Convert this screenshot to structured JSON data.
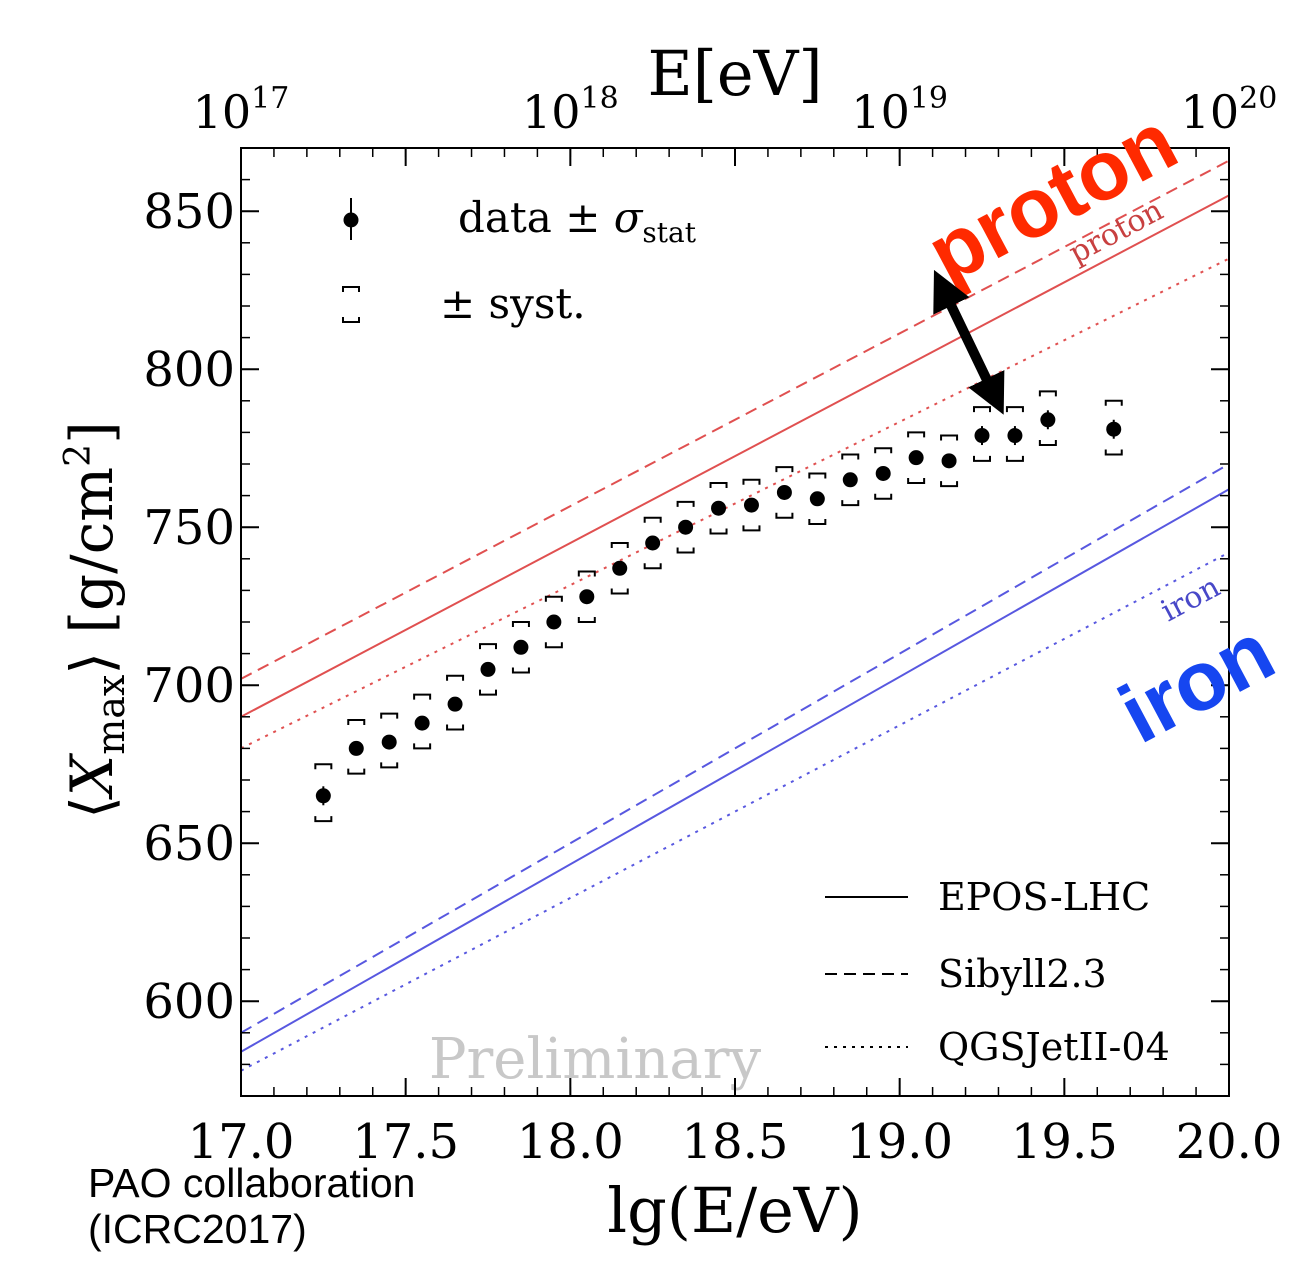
{
  "chart_data": {
    "type": "scatter",
    "xlabel": "lg(E/eV)",
    "ylabel_parts": {
      "open": "⟨",
      "var": "X",
      "sub": "max",
      "close": "⟩",
      "unit": " [g/cm",
      "sup": "2",
      "unit_end": "]"
    },
    "top_axis_title": "E[eV]",
    "top_ticks": [
      {
        "x": 17.0,
        "base": "10",
        "exp": "17"
      },
      {
        "x": 18.0,
        "base": "10",
        "exp": "18"
      },
      {
        "x": 19.0,
        "base": "10",
        "exp": "19"
      },
      {
        "x": 20.0,
        "base": "10",
        "exp": "20"
      }
    ],
    "xlim": [
      17.0,
      20.0
    ],
    "ylim": [
      570,
      870
    ],
    "x_ticks": [
      17.0,
      17.5,
      18.0,
      18.5,
      19.0,
      19.5,
      20.0
    ],
    "x_tick_labels": [
      "17.0",
      "17.5",
      "18.0",
      "18.5",
      "19.0",
      "19.5",
      "20.0"
    ],
    "y_ticks": [
      600,
      650,
      700,
      750,
      800,
      850
    ],
    "y_tick_labels": [
      "600",
      "650",
      "700",
      "750",
      "800",
      "850"
    ],
    "grid": false,
    "data": [
      {
        "x": 17.25,
        "y": 665,
        "stat": 3,
        "syst_lo": 657,
        "syst_hi": 675
      },
      {
        "x": 17.35,
        "y": 680,
        "stat": 2,
        "syst_lo": 672,
        "syst_hi": 689
      },
      {
        "x": 17.45,
        "y": 682,
        "stat": 2,
        "syst_lo": 674,
        "syst_hi": 691
      },
      {
        "x": 17.55,
        "y": 688,
        "stat": 2,
        "syst_lo": 680,
        "syst_hi": 697
      },
      {
        "x": 17.65,
        "y": 694,
        "stat": 2,
        "syst_lo": 686,
        "syst_hi": 703
      },
      {
        "x": 17.75,
        "y": 705,
        "stat": 2,
        "syst_lo": 697,
        "syst_hi": 713
      },
      {
        "x": 17.85,
        "y": 712,
        "stat": 2,
        "syst_lo": 704,
        "syst_hi": 720
      },
      {
        "x": 17.95,
        "y": 720,
        "stat": 2,
        "syst_lo": 712,
        "syst_hi": 728
      },
      {
        "x": 18.05,
        "y": 728,
        "stat": 2,
        "syst_lo": 720,
        "syst_hi": 736
      },
      {
        "x": 18.15,
        "y": 737,
        "stat": 2,
        "syst_lo": 729,
        "syst_hi": 745
      },
      {
        "x": 18.25,
        "y": 745,
        "stat": 2,
        "syst_lo": 737,
        "syst_hi": 753
      },
      {
        "x": 18.35,
        "y": 750,
        "stat": 2,
        "syst_lo": 742,
        "syst_hi": 758
      },
      {
        "x": 18.45,
        "y": 756,
        "stat": 2,
        "syst_lo": 748,
        "syst_hi": 764
      },
      {
        "x": 18.55,
        "y": 757,
        "stat": 2,
        "syst_lo": 749,
        "syst_hi": 765
      },
      {
        "x": 18.65,
        "y": 761,
        "stat": 2,
        "syst_lo": 753,
        "syst_hi": 769
      },
      {
        "x": 18.75,
        "y": 759,
        "stat": 2,
        "syst_lo": 751,
        "syst_hi": 767
      },
      {
        "x": 18.85,
        "y": 765,
        "stat": 2,
        "syst_lo": 757,
        "syst_hi": 773
      },
      {
        "x": 18.95,
        "y": 767,
        "stat": 2,
        "syst_lo": 759,
        "syst_hi": 775
      },
      {
        "x": 19.05,
        "y": 772,
        "stat": 2,
        "syst_lo": 764,
        "syst_hi": 780
      },
      {
        "x": 19.15,
        "y": 771,
        "stat": 2,
        "syst_lo": 763,
        "syst_hi": 779
      },
      {
        "x": 19.25,
        "y": 779,
        "stat": 3,
        "syst_lo": 771,
        "syst_hi": 788
      },
      {
        "x": 19.35,
        "y": 779,
        "stat": 3,
        "syst_lo": 771,
        "syst_hi": 788
      },
      {
        "x": 19.45,
        "y": 784,
        "stat": 3,
        "syst_lo": 776,
        "syst_hi": 793
      },
      {
        "x": 19.65,
        "y": 781,
        "stat": 3,
        "syst_lo": 773,
        "syst_hi": 790
      }
    ],
    "models": [
      {
        "name": "EPOS-LHC",
        "style": "solid",
        "proton": [
          [
            17.0,
            690
          ],
          [
            20.0,
            855
          ]
        ],
        "iron": [
          [
            17.0,
            584
          ],
          [
            20.0,
            762
          ]
        ]
      },
      {
        "name": "Sibyll2.3",
        "style": "dashed",
        "proton": [
          [
            17.0,
            702
          ],
          [
            20.0,
            866
          ]
        ],
        "iron": [
          [
            17.0,
            590
          ],
          [
            20.0,
            770
          ]
        ]
      },
      {
        "name": "QGSJetII-04",
        "style": "dotted",
        "proton": [
          [
            17.0,
            680
          ],
          [
            20.0,
            835
          ]
        ],
        "iron": [
          [
            17.0,
            578
          ],
          [
            20.0,
            742
          ]
        ]
      }
    ],
    "colors": {
      "proton": "#e05050",
      "iron": "#5858e0",
      "data": "#000000",
      "proton_big": "#ff2a00",
      "iron_big": "#1646f0"
    },
    "legend_data": {
      "marker_label": "data ± ",
      "sigma": "σ",
      "sigma_sub": "stat",
      "syst_label": "±  syst."
    },
    "legend_models": [
      "EPOS-LHC",
      "Sibyll2.3",
      "QGSJetII-04"
    ],
    "annotations": {
      "proton_small": "proton",
      "iron_small": "iron",
      "proton_big": "proton",
      "iron_big": "iron",
      "watermark": "Preliminary",
      "arrow": {
        "from": [
          19.12,
          828
        ],
        "to": [
          19.3,
          789
        ]
      }
    }
  },
  "credit": {
    "line1": "PAO collaboration",
    "line2": "(ICRC2017)"
  }
}
